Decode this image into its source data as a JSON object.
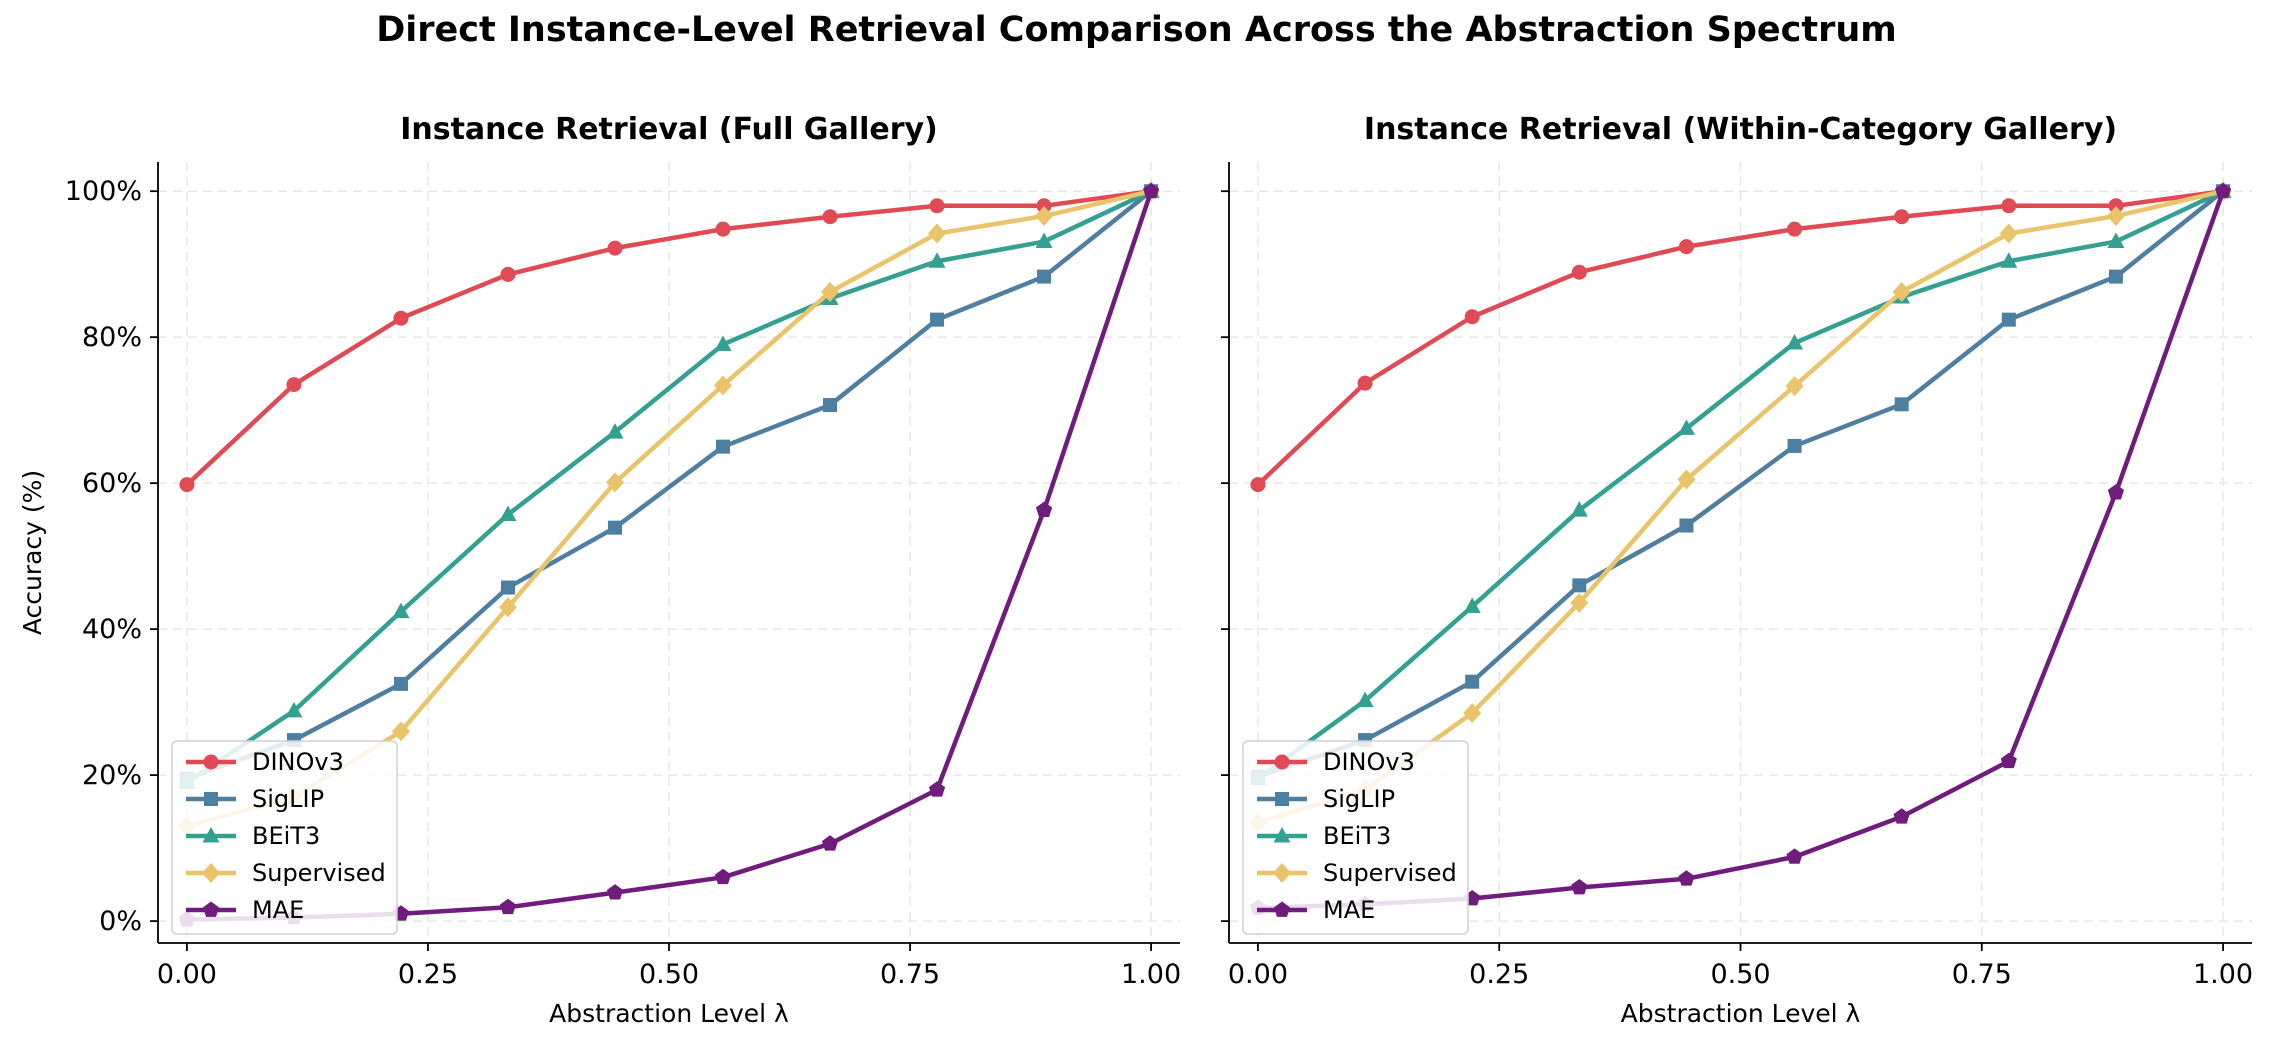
{
  "figure": {
    "suptitle": "Direct Instance-Level Retrieval Comparison Across the Abstraction Spectrum"
  },
  "chart_data": [
    {
      "type": "line",
      "title": "Instance Retrieval (Full Gallery)",
      "xlabel": "Abstraction Level λ",
      "ylabel": "Accuracy (%)",
      "xlim": [
        -0.03,
        1.03
      ],
      "ylim": [
        -3,
        104
      ],
      "xticks": [
        0,
        0.25,
        0.5,
        0.75,
        1.0
      ],
      "xtick_labels": [
        "0.00",
        "0.25",
        "0.50",
        "0.75",
        "1.00"
      ],
      "yticks": [
        0,
        20,
        40,
        60,
        80,
        100
      ],
      "ytick_labels": [
        "0%",
        "20%",
        "40%",
        "60%",
        "80%",
        "100%"
      ],
      "grid": true,
      "legend_position": "lower-left",
      "x": [
        0,
        0.111,
        0.222,
        0.333,
        0.444,
        0.556,
        0.667,
        0.778,
        0.889,
        1.0
      ],
      "series": [
        {
          "name": "DINOv3",
          "color": "#e04a54",
          "marker": "circle",
          "values": [
            59.8,
            73.5,
            82.6,
            88.6,
            92.2,
            94.8,
            96.5,
            98.0,
            98.0,
            100
          ]
        },
        {
          "name": "SigLIP",
          "color": "#4e7fa0",
          "marker": "square",
          "values": [
            19.5,
            24.8,
            32.5,
            45.7,
            53.9,
            65.0,
            70.7,
            82.4,
            88.3,
            100
          ]
        },
        {
          "name": "BEiT3",
          "color": "#33a091",
          "marker": "triangle",
          "values": [
            19.0,
            28.8,
            42.4,
            55.7,
            67.0,
            79.0,
            85.3,
            90.4,
            93.1,
            100
          ]
        },
        {
          "name": "Supervised",
          "color": "#e9c46a",
          "marker": "diamond",
          "values": [
            13.0,
            17.0,
            26.0,
            43.0,
            60.1,
            73.4,
            86.2,
            94.2,
            96.6,
            100
          ]
        },
        {
          "name": "MAE",
          "color": "#701c7d",
          "marker": "pentagon",
          "values": [
            0.2,
            0.5,
            1.0,
            1.9,
            3.9,
            6.0,
            10.6,
            18.0,
            56.3,
            100
          ]
        }
      ]
    },
    {
      "type": "line",
      "title": "Instance Retrieval (Within-Category Gallery)",
      "xlabel": "Abstraction Level λ",
      "ylabel": "",
      "xlim": [
        -0.03,
        1.03
      ],
      "ylim": [
        -3,
        104
      ],
      "xticks": [
        0,
        0.25,
        0.5,
        0.75,
        1.0
      ],
      "xtick_labels": [
        "0.00",
        "0.25",
        "0.50",
        "0.75",
        "1.00"
      ],
      "yticks": [
        0,
        20,
        40,
        60,
        80,
        100
      ],
      "ytick_labels": [
        "",
        "",
        "",
        "",
        "",
        ""
      ],
      "grid": true,
      "legend_position": "lower-left",
      "x": [
        0,
        0.111,
        0.222,
        0.333,
        0.444,
        0.556,
        0.667,
        0.778,
        0.889,
        1.0
      ],
      "series": [
        {
          "name": "DINOv3",
          "color": "#e04a54",
          "marker": "circle",
          "values": [
            59.8,
            73.7,
            82.8,
            88.9,
            92.4,
            94.8,
            96.5,
            98.0,
            98.0,
            100
          ]
        },
        {
          "name": "SigLIP",
          "color": "#4e7fa0",
          "marker": "square",
          "values": [
            19.8,
            24.8,
            32.8,
            46.0,
            54.2,
            65.1,
            70.8,
            82.4,
            88.3,
            100
          ]
        },
        {
          "name": "BEiT3",
          "color": "#33a091",
          "marker": "triangle",
          "values": [
            19.5,
            30.2,
            43.1,
            56.3,
            67.5,
            79.2,
            85.5,
            90.4,
            93.1,
            100
          ]
        },
        {
          "name": "Supervised",
          "color": "#e9c46a",
          "marker": "diamond",
          "values": [
            13.5,
            18.0,
            28.5,
            43.6,
            60.5,
            73.3,
            86.2,
            94.2,
            96.6,
            100
          ]
        },
        {
          "name": "MAE",
          "color": "#701c7d",
          "marker": "pentagon",
          "values": [
            1.8,
            2.3,
            3.1,
            4.6,
            5.8,
            8.8,
            14.3,
            21.9,
            58.7,
            100
          ]
        }
      ]
    }
  ]
}
